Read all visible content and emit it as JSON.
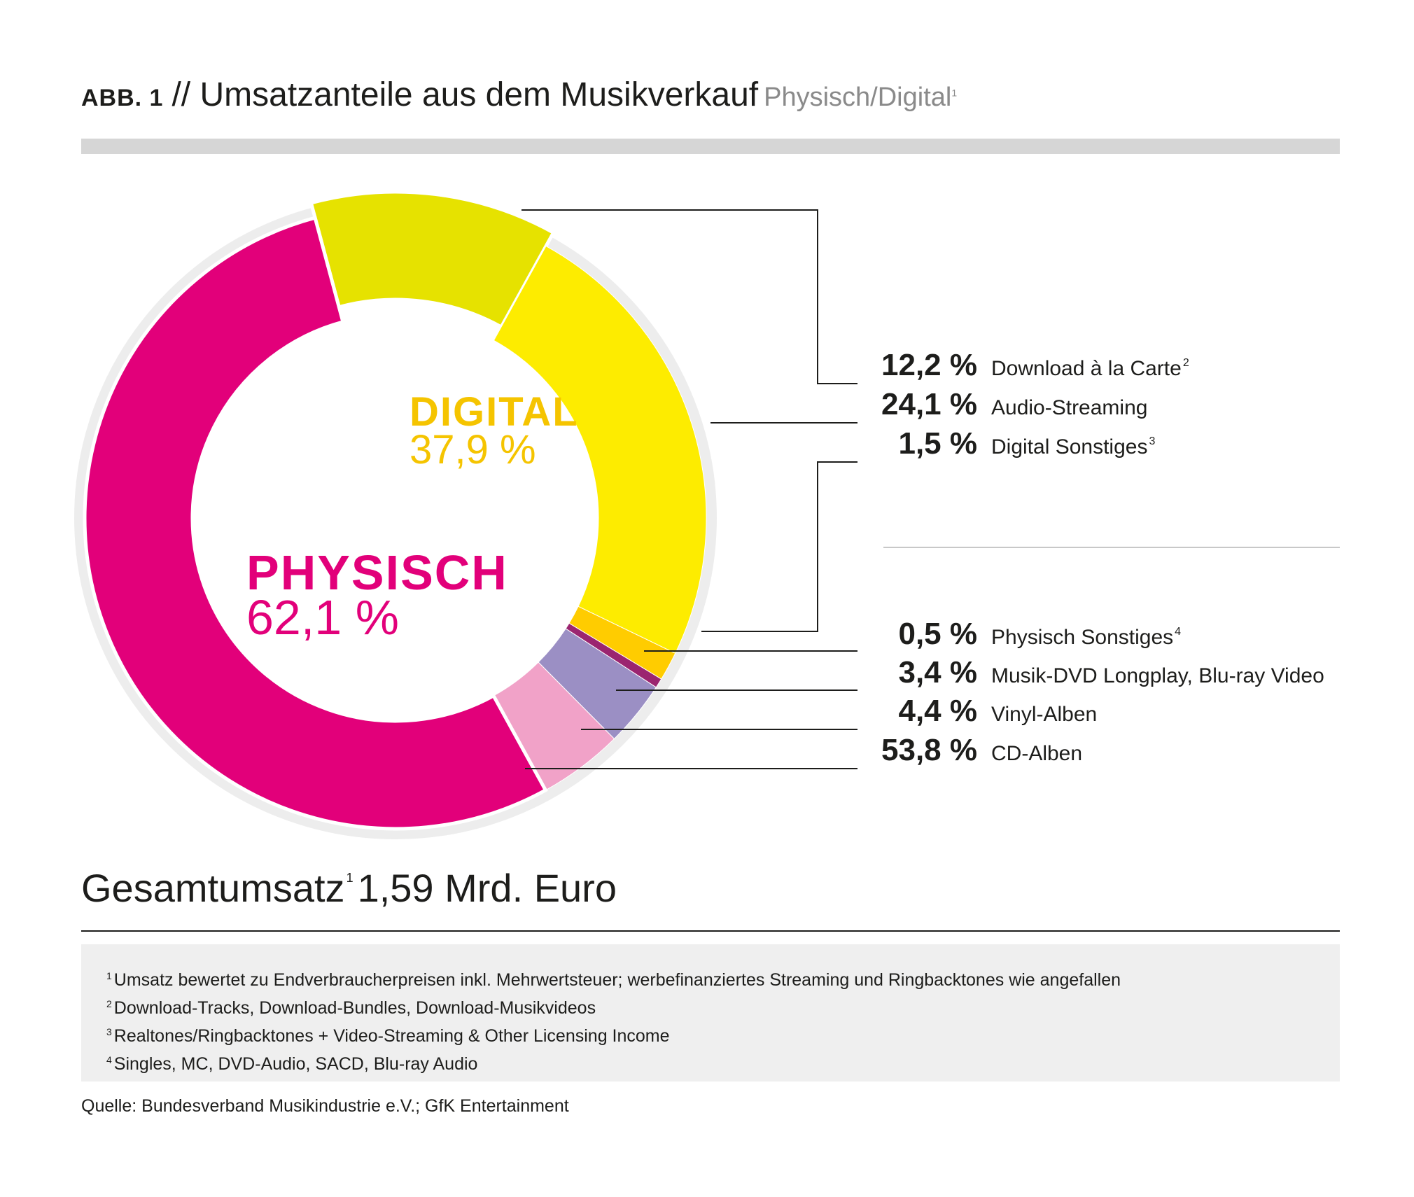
{
  "header": {
    "abb_label": "ABB. 1",
    "title": "// Umsatzanteile aus dem Musikverkauf",
    "subtitle": "Physisch/Digital",
    "subtitle_footnote": "1"
  },
  "chart_data": {
    "type": "pie",
    "groups": [
      {
        "name": "DIGITAL",
        "value": 37.9,
        "label": "37,9 %",
        "color": "#F5C400"
      },
      {
        "name": "PHYSISCH",
        "value": 62.1,
        "label": "62,1 %",
        "color": "#E2007A"
      }
    ],
    "segments": [
      {
        "name": "Download à la Carte",
        "footnote": "2",
        "value": 12.2,
        "label": "12,2 %",
        "group": "DIGITAL",
        "color": "#E6E200"
      },
      {
        "name": "Audio-Streaming",
        "footnote": "",
        "value": 24.1,
        "label": "24,1 %",
        "group": "DIGITAL",
        "color": "#FDEC00"
      },
      {
        "name": "Digital Sonstiges",
        "footnote": "3",
        "value": 1.5,
        "label": "1,5 %",
        "group": "DIGITAL",
        "color": "#FFCC00"
      },
      {
        "name": "Physisch Sonstiges",
        "footnote": "4",
        "value": 0.5,
        "label": "0,5 %",
        "group": "PHYSISCH",
        "color": "#9B2570"
      },
      {
        "name": "Musik-DVD Longplay, Blu-ray Video",
        "footnote": "",
        "value": 3.4,
        "label": "3,4 %",
        "group": "PHYSISCH",
        "color": "#9B8FC4"
      },
      {
        "name": "Vinyl-Alben",
        "footnote": "",
        "value": 4.4,
        "label": "4,4 %",
        "group": "PHYSISCH",
        "color": "#F1A2C8"
      },
      {
        "name": "CD-Alben",
        "footnote": "",
        "value": 53.8,
        "label": "53,8 %",
        "group": "PHYSISCH",
        "color": "#E2007A"
      }
    ],
    "ring_color": "#EDEDED",
    "leader_color": "#1d1d1b"
  },
  "total": {
    "label": "Gesamtumsatz",
    "footnote": "1",
    "value": "1,59 Mrd. Euro"
  },
  "footnotes": [
    {
      "num": "1",
      "text": "Umsatz bewertet zu Endverbraucherpreisen inkl. Mehrwertsteuer; werbefinanziertes Streaming und Ringbacktones wie angefallen"
    },
    {
      "num": "2",
      "text": "Download-Tracks, Download-Bundles, Download-Musikvideos"
    },
    {
      "num": "3",
      "text": "Realtones/Ringbacktones + Video-Streaming & Other Licensing Income"
    },
    {
      "num": "4",
      "text": "Singles, MC, DVD-Audio, SACD, Blu-ray Audio"
    }
  ],
  "source": "Quelle: Bundesverband Musikindustrie e.V.; GfK Entertainment"
}
